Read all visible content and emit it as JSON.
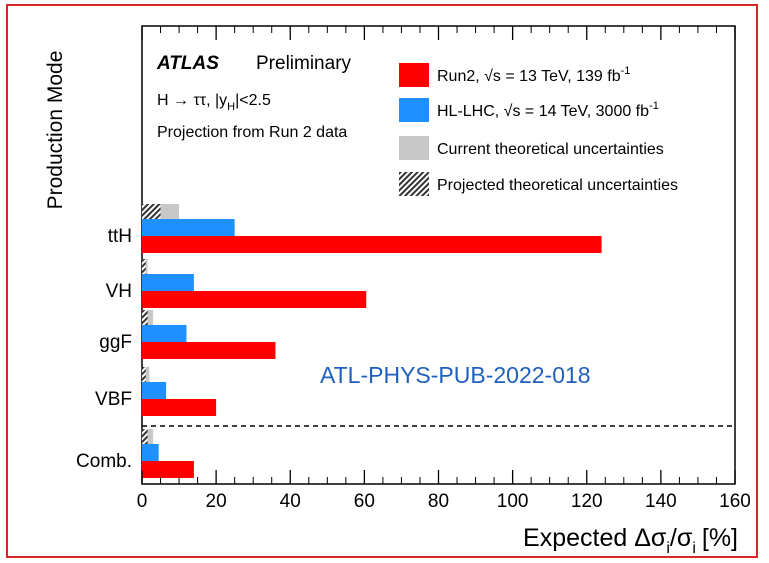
{
  "chart_data": {
    "type": "bar",
    "orientation": "horizontal",
    "ylabel": "Production Mode",
    "xlabel_text": "Expected Δσ",
    "xlabel_sub_i1": "i",
    "xlabel_mid": "/σ",
    "xlabel_sub_i2": "i",
    "xlabel_unit": "[%]",
    "xlim": [
      0,
      160
    ],
    "xticks": [
      "0",
      "20",
      "40",
      "60",
      "80",
      "100",
      "120",
      "140",
      "160"
    ],
    "categories": [
      "ttH",
      "VH",
      "ggF",
      "VBF",
      "Comb."
    ],
    "series": [
      {
        "name": "Run2, √s = 13 TeV, 139 fb⁻¹",
        "color": "#ff0000",
        "values": [
          124,
          60.5,
          36,
          20,
          14
        ]
      },
      {
        "name": "HL-LHC, √s = 14 TeV, 3000 fb⁻¹",
        "color": "#1e90ff",
        "values": [
          25,
          14,
          12,
          6.5,
          4.5
        ]
      },
      {
        "name": "Current theoretical uncertainties",
        "color": "#c8c8c8",
        "values": [
          10,
          1.5,
          3,
          2,
          3
        ]
      },
      {
        "name": "Projected theoretical uncertainties",
        "color": "#444444",
        "values": [
          5,
          1,
          1.5,
          1,
          1.5
        ]
      }
    ],
    "legend_position": "top-right",
    "separator_after": "VBF"
  },
  "annotations": {
    "atlas": "ATLAS",
    "preliminary": "Preliminary",
    "channel": "H → ττ, |y",
    "channel_sub": "H",
    "channel_end": "|<2.5",
    "projection": "Projection from Run 2 data",
    "ref": "ATL-PHYS-PUB-2022-018"
  },
  "legend": {
    "run2": "Run2, √s = 13 TeV, 139 fb",
    "run2_sup": "-1",
    "hllhc": "HL-LHC, √s = 14 TeV, 3000 fb",
    "hllhc_sup": "-1",
    "current": "Current theoretical uncertainties",
    "projected": "Projected theoretical uncertainties"
  }
}
